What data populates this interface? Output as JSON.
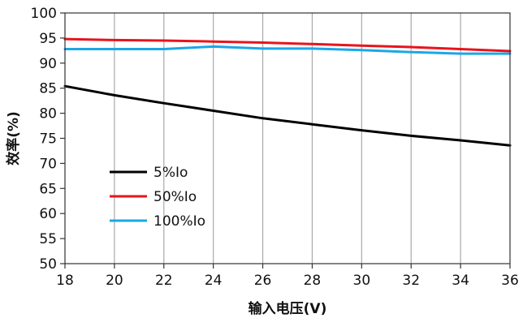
{
  "chart_data": {
    "type": "line",
    "xlabel": "输入电压(V)",
    "ylabel": "效率(%)",
    "xlim": [
      18,
      36
    ],
    "ylim": [
      50,
      100
    ],
    "xticks": [
      18,
      20,
      22,
      24,
      26,
      28,
      30,
      32,
      34,
      36
    ],
    "yticks": [
      50,
      55,
      60,
      65,
      70,
      75,
      80,
      85,
      90,
      95,
      100
    ],
    "grid": "x-vertical",
    "legend_position": "left-bottom",
    "series": [
      {
        "name": "5%Io",
        "color": "#000000",
        "x": [
          18,
          20,
          22,
          24,
          26,
          28,
          30,
          32,
          34,
          36
        ],
        "y": [
          85.4,
          83.6,
          82.0,
          80.5,
          79.0,
          77.8,
          76.6,
          75.5,
          74.6,
          73.6
        ]
      },
      {
        "name": "50%Io",
        "color": "#e8141c",
        "x": [
          18,
          20,
          22,
          24,
          26,
          28,
          30,
          32,
          34,
          36
        ],
        "y": [
          94.8,
          94.6,
          94.5,
          94.3,
          94.1,
          93.8,
          93.5,
          93.2,
          92.8,
          92.4
        ]
      },
      {
        "name": "100%Io",
        "color": "#1ba7e8",
        "x": [
          18,
          20,
          22,
          24,
          26,
          28,
          30,
          32,
          34,
          36
        ],
        "y": [
          92.8,
          92.8,
          92.8,
          93.3,
          92.9,
          92.9,
          92.6,
          92.2,
          91.9,
          91.9
        ]
      }
    ]
  }
}
